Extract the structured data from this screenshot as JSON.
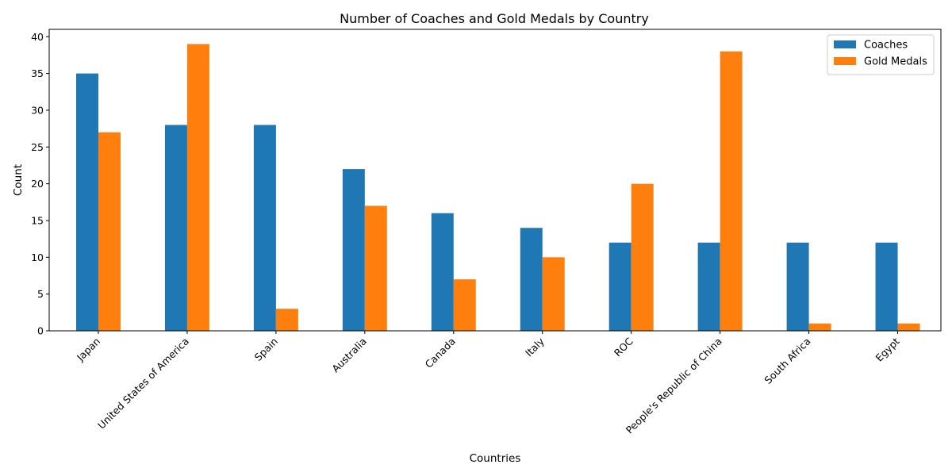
{
  "chart_data": {
    "type": "bar",
    "title": "Number of Coaches and Gold Medals by Country",
    "xlabel": "Countries",
    "ylabel": "Count",
    "categories": [
      "Japan",
      "United States of America",
      "Spain",
      "Australia",
      "Canada",
      "Italy",
      "ROC",
      "People's Republic of China",
      "South Africa",
      "Egypt"
    ],
    "series": [
      {
        "name": "Coaches",
        "color": "#1f77b4",
        "values": [
          35,
          28,
          28,
          22,
          16,
          14,
          12,
          12,
          12,
          12
        ]
      },
      {
        "name": "Gold Medals",
        "color": "#ff7f0e",
        "values": [
          27,
          39,
          3,
          17,
          7,
          10,
          20,
          38,
          1,
          1
        ]
      }
    ],
    "ylim": [
      0,
      41
    ],
    "yticks": [
      0,
      5,
      10,
      15,
      20,
      25,
      30,
      35,
      40
    ],
    "grid": false,
    "legend_position": "top-right"
  }
}
